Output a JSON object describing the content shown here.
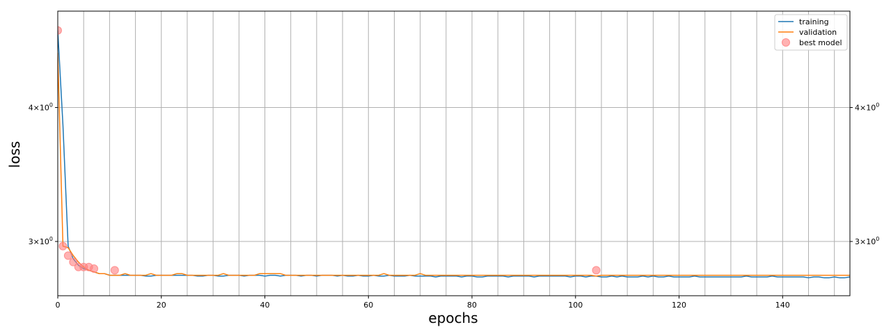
{
  "chart_data": {
    "type": "line",
    "xlabel": "epochs",
    "ylabel": "loss",
    "xlim": [
      0,
      153
    ],
    "ylim": [
      2.67,
      4.92
    ],
    "yscale": "log",
    "grid": true,
    "legend_position": "top-right",
    "xticks": [
      0,
      20,
      40,
      60,
      80,
      100,
      120,
      140
    ],
    "xtick_labels": [
      "0",
      "20",
      "40",
      "60",
      "80",
      "100",
      "120",
      "140"
    ],
    "x_minor_grid_step": 5,
    "yticks": [
      3,
      4
    ],
    "ytick_base": "10",
    "ytick_exp": "0",
    "ytick_coef": [
      "3",
      "4"
    ],
    "ytick_mult": "×",
    "series": [
      {
        "name": "training",
        "color": "#1f77b4",
        "values": [
          4.72,
          3.85,
          2.97,
          2.89,
          2.85,
          2.83,
          2.82,
          2.81,
          2.8,
          2.8,
          2.79,
          2.79,
          2.79,
          2.79,
          2.79,
          2.79,
          2.79,
          2.785,
          2.785,
          2.79,
          2.79,
          2.79,
          2.79,
          2.79,
          2.79,
          2.79,
          2.79,
          2.785,
          2.785,
          2.79,
          2.79,
          2.785,
          2.785,
          2.79,
          2.79,
          2.79,
          2.785,
          2.79,
          2.79,
          2.79,
          2.785,
          2.79,
          2.79,
          2.785,
          2.79,
          2.79,
          2.79,
          2.785,
          2.79,
          2.79,
          2.785,
          2.79,
          2.79,
          2.79,
          2.785,
          2.79,
          2.785,
          2.785,
          2.79,
          2.785,
          2.785,
          2.79,
          2.785,
          2.785,
          2.79,
          2.785,
          2.785,
          2.785,
          2.79,
          2.785,
          2.785,
          2.785,
          2.785,
          2.78,
          2.785,
          2.785,
          2.785,
          2.785,
          2.78,
          2.785,
          2.785,
          2.78,
          2.78,
          2.785,
          2.785,
          2.785,
          2.785,
          2.78,
          2.785,
          2.785,
          2.785,
          2.785,
          2.78,
          2.785,
          2.785,
          2.785,
          2.785,
          2.785,
          2.785,
          2.78,
          2.785,
          2.785,
          2.78,
          2.785,
          2.785,
          2.78,
          2.78,
          2.785,
          2.78,
          2.785,
          2.78,
          2.78,
          2.78,
          2.785,
          2.78,
          2.785,
          2.78,
          2.78,
          2.785,
          2.78,
          2.78,
          2.78,
          2.78,
          2.785,
          2.78,
          2.78,
          2.78,
          2.78,
          2.78,
          2.78,
          2.78,
          2.78,
          2.78,
          2.785,
          2.78,
          2.78,
          2.78,
          2.78,
          2.785,
          2.78,
          2.78,
          2.78,
          2.78,
          2.78,
          2.78,
          2.775,
          2.78,
          2.78,
          2.775,
          2.775,
          2.78,
          2.775,
          2.775,
          2.78
        ]
      },
      {
        "name": "validation",
        "color": "#ff7f0e",
        "values": [
          4.5,
          2.97,
          2.96,
          2.91,
          2.87,
          2.84,
          2.82,
          2.81,
          2.8,
          2.8,
          2.79,
          2.79,
          2.79,
          2.8,
          2.79,
          2.79,
          2.79,
          2.79,
          2.8,
          2.79,
          2.79,
          2.79,
          2.79,
          2.8,
          2.8,
          2.79,
          2.79,
          2.79,
          2.79,
          2.79,
          2.79,
          2.79,
          2.8,
          2.79,
          2.79,
          2.79,
          2.79,
          2.79,
          2.79,
          2.8,
          2.8,
          2.8,
          2.8,
          2.8,
          2.79,
          2.79,
          2.79,
          2.79,
          2.79,
          2.79,
          2.79,
          2.79,
          2.79,
          2.79,
          2.79,
          2.79,
          2.79,
          2.79,
          2.79,
          2.79,
          2.79,
          2.79,
          2.79,
          2.8,
          2.79,
          2.79,
          2.79,
          2.79,
          2.79,
          2.79,
          2.8,
          2.79,
          2.79,
          2.79,
          2.79,
          2.79,
          2.79,
          2.79,
          2.79,
          2.79,
          2.79,
          2.79,
          2.79,
          2.79,
          2.79,
          2.79,
          2.79,
          2.79,
          2.79,
          2.79,
          2.79,
          2.79,
          2.79,
          2.79,
          2.79,
          2.79,
          2.79,
          2.79,
          2.79,
          2.79,
          2.79,
          2.79,
          2.79,
          2.79,
          2.785,
          2.79,
          2.79,
          2.79,
          2.79,
          2.79,
          2.79,
          2.79,
          2.79,
          2.79,
          2.79,
          2.79,
          2.79,
          2.79,
          2.79,
          2.79,
          2.79,
          2.79,
          2.79,
          2.79,
          2.79,
          2.79,
          2.79,
          2.79,
          2.79,
          2.79,
          2.79,
          2.79,
          2.79,
          2.79,
          2.79,
          2.79,
          2.79,
          2.79,
          2.79,
          2.79,
          2.79,
          2.79,
          2.79,
          2.79,
          2.79,
          2.79,
          2.79,
          2.79,
          2.79,
          2.79,
          2.79,
          2.79,
          2.79,
          2.79
        ]
      }
    ],
    "best_model": {
      "name": "best model",
      "color": "#ff7f7f",
      "points": [
        {
          "x": 0,
          "y": 4.72
        },
        {
          "x": 1,
          "y": 2.97
        },
        {
          "x": 2,
          "y": 2.91
        },
        {
          "x": 3,
          "y": 2.87
        },
        {
          "x": 4,
          "y": 2.84
        },
        {
          "x": 5,
          "y": 2.84
        },
        {
          "x": 6,
          "y": 2.84
        },
        {
          "x": 7,
          "y": 2.83
        },
        {
          "x": 11,
          "y": 2.82
        },
        {
          "x": 104,
          "y": 2.82
        }
      ]
    }
  }
}
